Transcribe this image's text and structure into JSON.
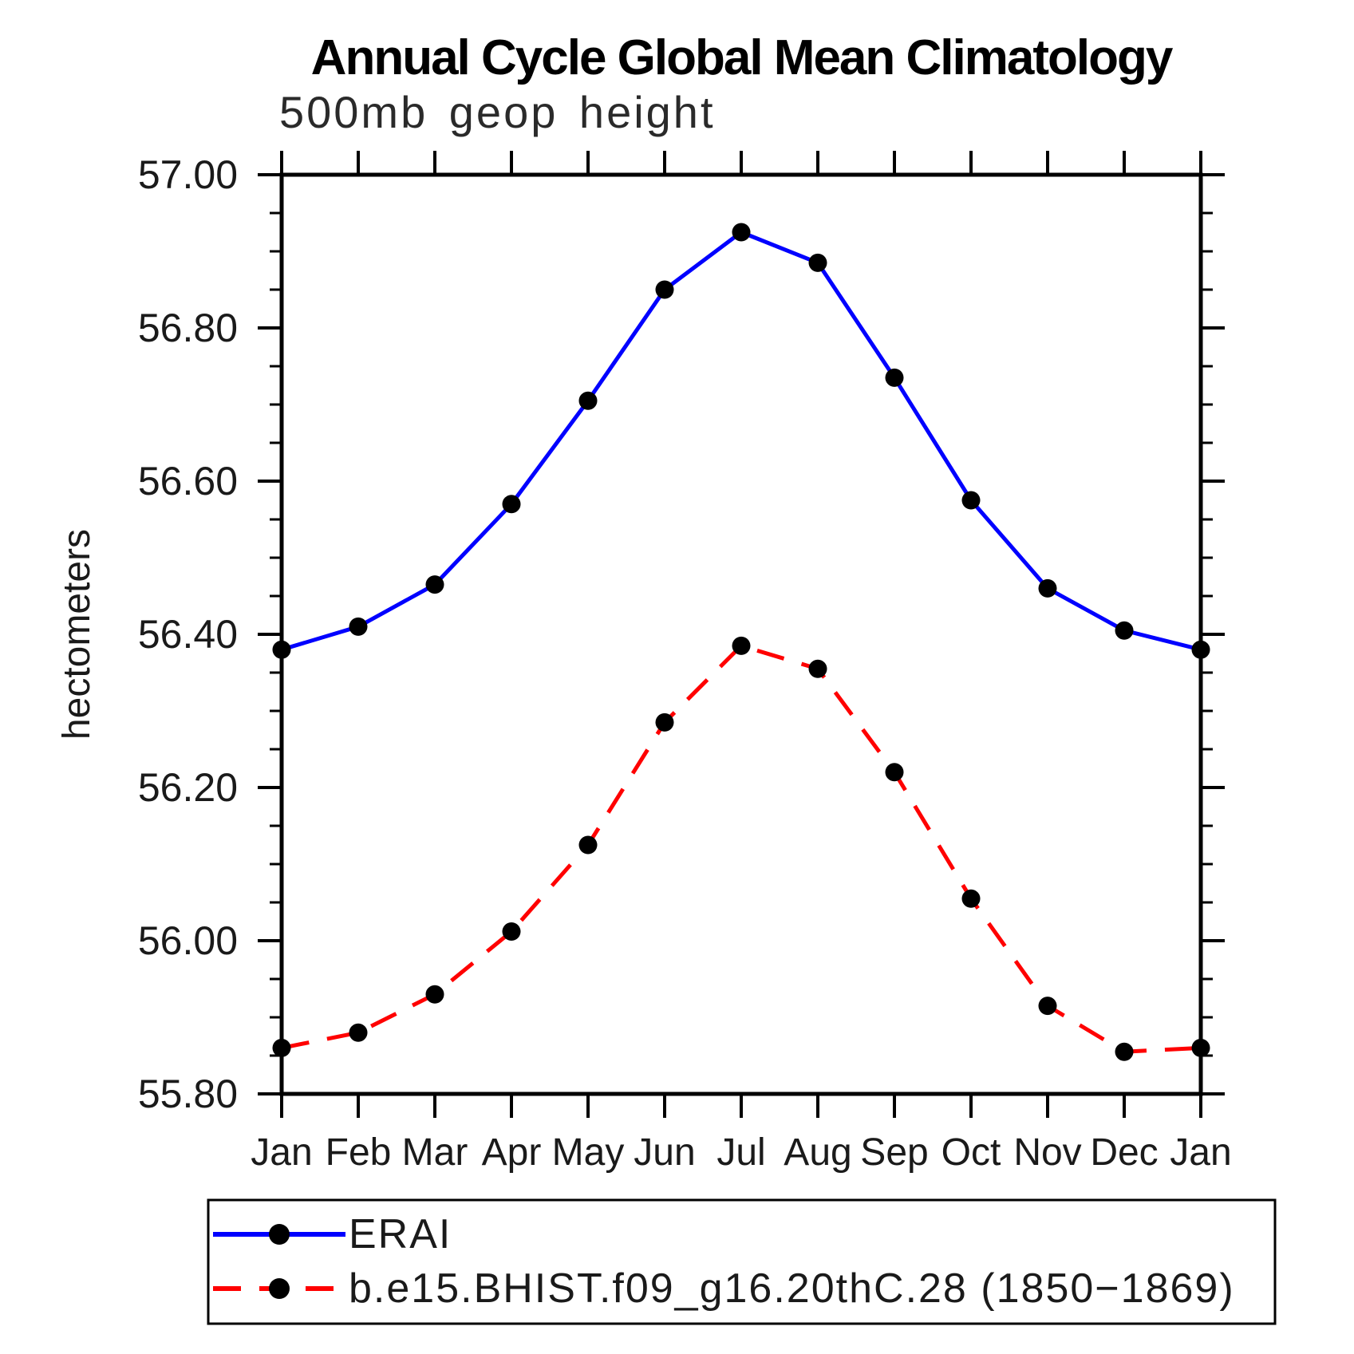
{
  "chart_data": {
    "type": "line",
    "title": "Annual Cycle Global Mean Climatology",
    "subtitle": "500mb geop height",
    "ylabel": "hectometers",
    "categories": [
      "Jan",
      "Feb",
      "Mar",
      "Apr",
      "May",
      "Jun",
      "Jul",
      "Aug",
      "Sep",
      "Oct",
      "Nov",
      "Dec",
      "Jan"
    ],
    "ylim": [
      55.8,
      57.0
    ],
    "y_ticks": [
      57.0,
      56.8,
      56.6,
      56.4,
      56.2,
      56.0,
      55.8
    ],
    "y_tick_labels": [
      "57.00",
      "56.80",
      "56.60",
      "56.40",
      "56.20",
      "56.00",
      "55.80"
    ],
    "y_minor_step": 0.05,
    "grid": false,
    "legend_position": "bottom-left",
    "frame_color": "#000000",
    "marker_color": "#000000",
    "series": [
      {
        "name": "ERAI",
        "color": "#0000ff",
        "line_style": "solid",
        "marker": "circle",
        "values": [
          56.38,
          56.41,
          56.465,
          56.57,
          56.705,
          56.85,
          56.925,
          56.885,
          56.735,
          56.575,
          56.46,
          56.405,
          56.38
        ]
      },
      {
        "name": "b.e15.BHIST.f09_g16.20thC.28 (1850−1869)",
        "color": "#ff0000",
        "line_style": "dashed",
        "marker": "circle",
        "values": [
          55.86,
          55.88,
          55.93,
          56.012,
          56.125,
          56.285,
          56.385,
          56.355,
          56.22,
          56.055,
          55.915,
          55.855,
          55.86
        ]
      }
    ]
  }
}
